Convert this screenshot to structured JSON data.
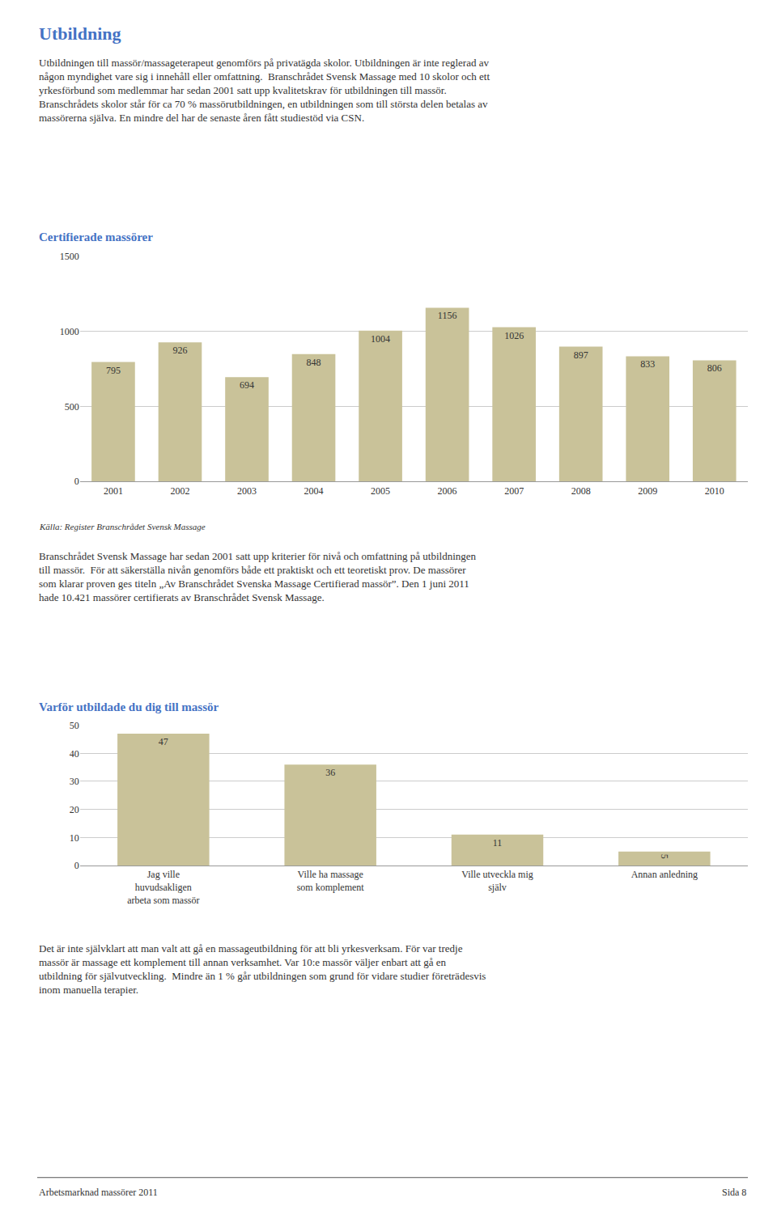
{
  "title": "Utbildning",
  "annotations": [
    "Utbildningen till massör/massageterapeut genomförs på privatägda skolor. Utbildningen är inte reglerad av\nnågon myndighet vare sig i innehåll eller omfattning.  Branschrådet Svensk Massage med 10 skolor och ett\nyrkesförbund som medlemmar har sedan 2001 satt upp kvalitetskrav för utbildningen till massör.\nBranschrådets skolor står för ca 70 % massörutbildningen, en utbildningen som till största delen betalas av\nmassörerna själva. En mindre del har de senaste åren fått studiestöd via CSN.",
    "Branschrådet Svensk Massage har sedan 2001 satt upp kriterier för nivå och omfattning på utbildningen\ntill massör.  För att säkerställa nivån genomförs både ett praktiskt och ett teoretiskt prov. De massörer\nsom klarar proven ges titeln „Av Branschrådet Svenska Massage Certifierad massör”. Den 1 juni 2011\nhade 10.421 massörer certifierats av Branschrådet Svensk Massage.",
    "Det är inte självklart att man valt att gå en massageutbildning för att bli yrkesverksam. För var tredje\nmassör är massage ett komplement till annan verksamhet. Var 10:e massör väljer enbart att gå en\nutbildning för självutveckling.  Mindre än 1 % går utbildningen som grund för vidare studier företrädesvis\ninom manuella terapier.",
    "Arbetsmarknad massörer 2011",
    "Sida 8"
  ],
  "chart_data": [
    {
      "type": "bar",
      "title": "Certifierade massörer",
      "categories": [
        "2001",
        "2002",
        "2003",
        "2004",
        "2005",
        "2006",
        "2007",
        "2008",
        "2009",
        "2010"
      ],
      "values": [
        795,
        926,
        694,
        848,
        1004,
        1156,
        1026,
        897,
        833,
        806
      ],
      "color": "#c9c299",
      "ylim": [
        0,
        1500
      ],
      "yticks": [
        0,
        500,
        1000,
        1500
      ],
      "grid": true,
      "data_labels": true,
      "annotations": [
        "Källa: Register Branschrådet Svensk Massage"
      ]
    },
    {
      "type": "bar",
      "title": "Varför utbildade du dig till massör",
      "categories": [
        "Jag ville\nhuvudsakligen\narbeta som massör",
        "Ville ha massage\nsom komplement",
        "Ville utveckla mig\nsjälv",
        "Annan anledning"
      ],
      "values": [
        47,
        36,
        11,
        5
      ],
      "color": "#c9c299",
      "ylim": [
        0,
        50
      ],
      "yticks": [
        0,
        10,
        20,
        30,
        40,
        50
      ],
      "grid": true,
      "data_labels": true
    }
  ]
}
